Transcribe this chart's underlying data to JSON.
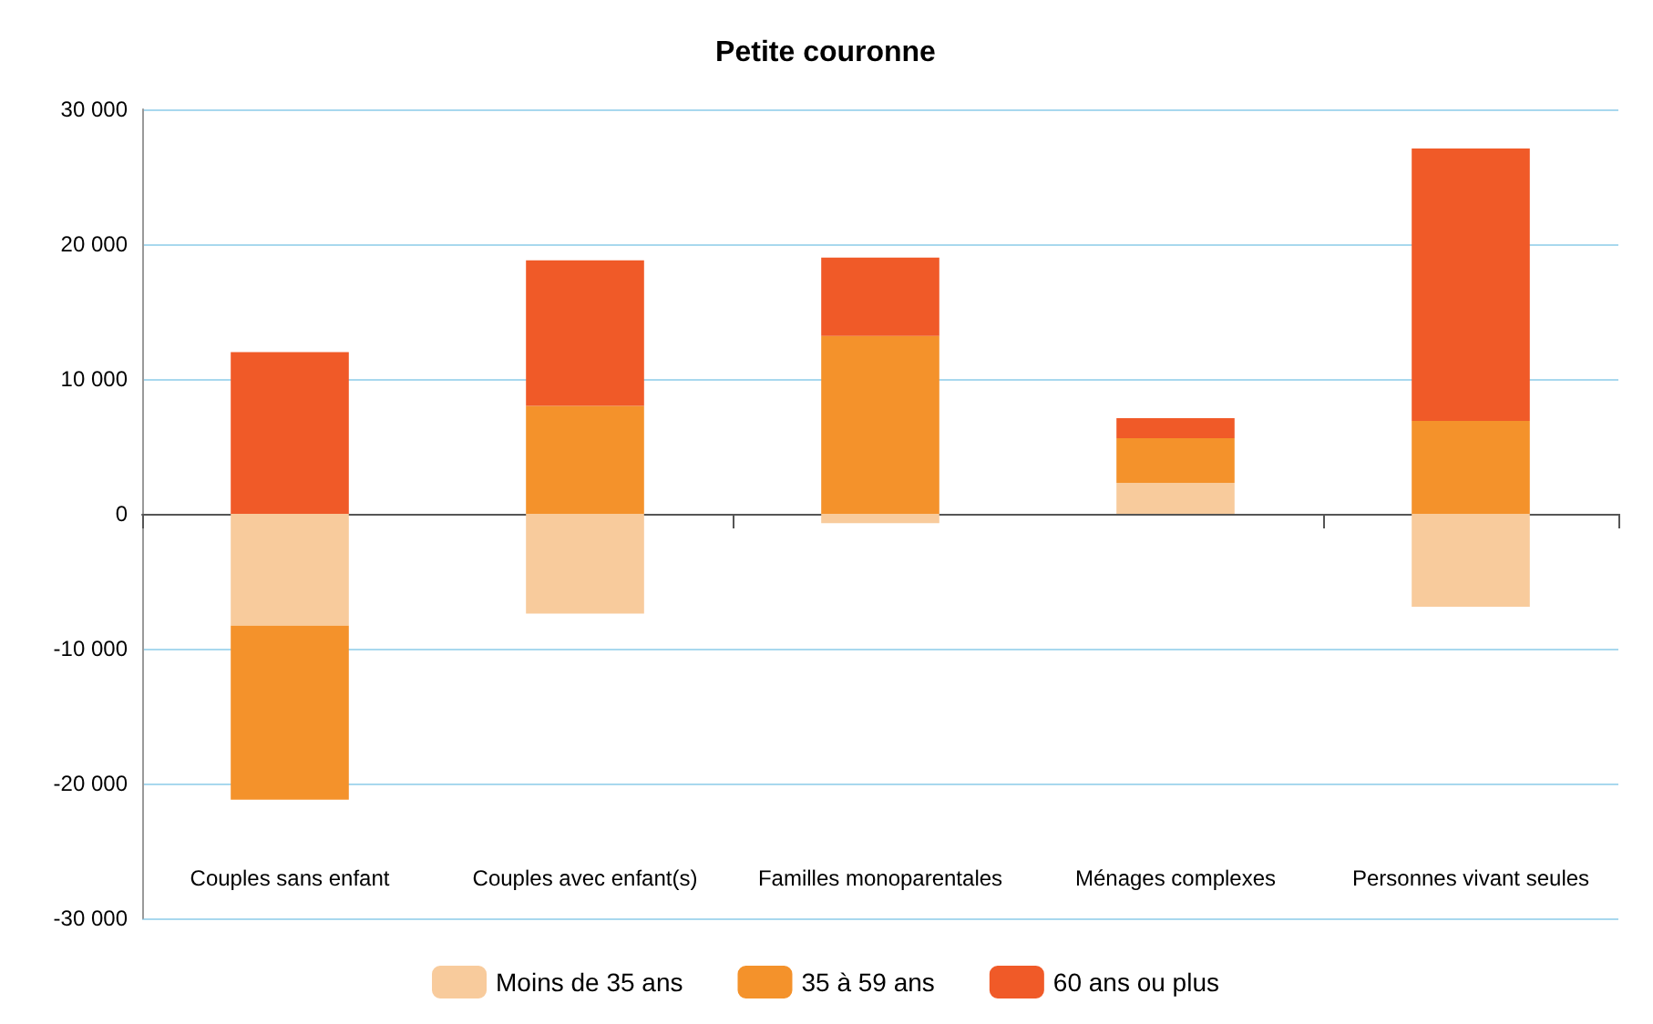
{
  "chart_data": {
    "type": "bar",
    "title": "Petite couronne",
    "stacked": true,
    "categories": [
      "Couples sans enfant",
      "Couples avec enfant(s)",
      "Familles monoparentales",
      "Ménages complexes",
      "Personnes vivant seules"
    ],
    "series": [
      {
        "name": "Moins de 35 ans",
        "color": "#f8cb9c",
        "values": [
          -8300,
          -7400,
          -700,
          2300,
          -6900
        ]
      },
      {
        "name": "35 à 59 ans",
        "color": "#f4922b",
        "values": [
          -12900,
          8000,
          13200,
          3300,
          6900
        ]
      },
      {
        "name": "60 ans ou plus",
        "color": "#f05a28",
        "values": [
          12000,
          10800,
          5800,
          1500,
          20200
        ]
      }
    ],
    "ylim": [
      -30000,
      30000
    ],
    "yticks": [
      {
        "value": -30000,
        "label": "-30 000"
      },
      {
        "value": -20000,
        "label": "-20 000"
      },
      {
        "value": -10000,
        "label": "-10 000"
      },
      {
        "value": 0,
        "label": "0"
      },
      {
        "value": 10000,
        "label": "10 000"
      },
      {
        "value": 20000,
        "label": "20 000"
      },
      {
        "value": 30000,
        "label": "30 000"
      }
    ],
    "grid": "y",
    "legend": "bottom"
  }
}
